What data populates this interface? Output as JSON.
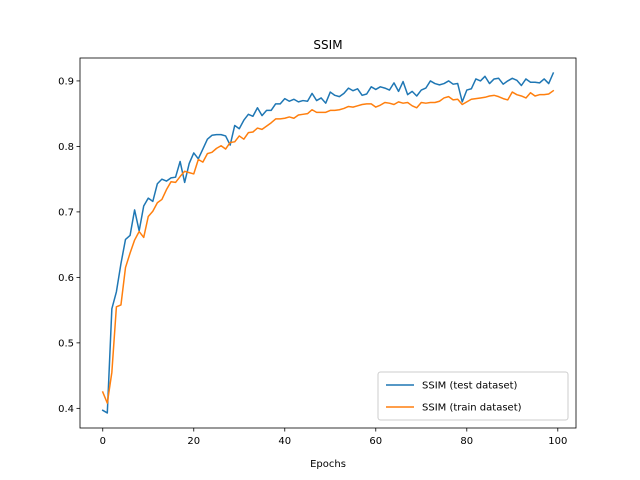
{
  "chart_data": {
    "type": "line",
    "title": "SSIM",
    "xlabel": "Epochs",
    "ylabel": "",
    "xlim": [
      -5,
      104
    ],
    "ylim": [
      0.37,
      0.935
    ],
    "x_ticks": [
      0,
      20,
      40,
      60,
      80,
      100
    ],
    "y_ticks": [
      0.4,
      0.5,
      0.6,
      0.7,
      0.8,
      0.9
    ],
    "grid": false,
    "legend_position": "lower-right",
    "series": [
      {
        "name": "SSIM (test dataset)",
        "color": "#1f77b4",
        "values": [
          0.397,
          0.393,
          0.552,
          0.578,
          0.621,
          0.658,
          0.664,
          0.703,
          0.671,
          0.709,
          0.721,
          0.716,
          0.743,
          0.75,
          0.747,
          0.752,
          0.753,
          0.777,
          0.745,
          0.774,
          0.79,
          0.781,
          0.796,
          0.811,
          0.817,
          0.818,
          0.818,
          0.816,
          0.802,
          0.832,
          0.827,
          0.84,
          0.849,
          0.846,
          0.859,
          0.847,
          0.855,
          0.855,
          0.865,
          0.865,
          0.873,
          0.869,
          0.872,
          0.868,
          0.87,
          0.869,
          0.881,
          0.87,
          0.874,
          0.866,
          0.883,
          0.878,
          0.876,
          0.881,
          0.889,
          0.885,
          0.888,
          0.878,
          0.88,
          0.891,
          0.887,
          0.891,
          0.889,
          0.886,
          0.897,
          0.884,
          0.899,
          0.879,
          0.884,
          0.877,
          0.886,
          0.889,
          0.9,
          0.896,
          0.894,
          0.896,
          0.9,
          0.895,
          0.896,
          0.868,
          0.886,
          0.888,
          0.903,
          0.9,
          0.907,
          0.896,
          0.903,
          0.904,
          0.895,
          0.9,
          0.904,
          0.901,
          0.893,
          0.903,
          0.898,
          0.898,
          0.897,
          0.903,
          0.896,
          0.912
        ]
      },
      {
        "name": "SSIM (train dataset)",
        "color": "#ff7f0e",
        "values": [
          0.425,
          0.408,
          0.455,
          0.555,
          0.558,
          0.615,
          0.637,
          0.657,
          0.67,
          0.661,
          0.693,
          0.701,
          0.714,
          0.719,
          0.734,
          0.746,
          0.745,
          0.754,
          0.762,
          0.76,
          0.758,
          0.78,
          0.776,
          0.789,
          0.791,
          0.797,
          0.801,
          0.796,
          0.806,
          0.807,
          0.816,
          0.811,
          0.821,
          0.822,
          0.828,
          0.826,
          0.831,
          0.836,
          0.842,
          0.842,
          0.843,
          0.845,
          0.843,
          0.848,
          0.849,
          0.85,
          0.856,
          0.852,
          0.852,
          0.852,
          0.855,
          0.855,
          0.856,
          0.858,
          0.861,
          0.86,
          0.862,
          0.864,
          0.865,
          0.865,
          0.86,
          0.863,
          0.867,
          0.866,
          0.864,
          0.868,
          0.866,
          0.867,
          0.862,
          0.859,
          0.867,
          0.866,
          0.867,
          0.867,
          0.869,
          0.874,
          0.876,
          0.871,
          0.872,
          0.864,
          0.868,
          0.872,
          0.873,
          0.874,
          0.875,
          0.877,
          0.878,
          0.876,
          0.873,
          0.871,
          0.883,
          0.879,
          0.877,
          0.874,
          0.882,
          0.877,
          0.879,
          0.879,
          0.88,
          0.885
        ]
      }
    ]
  }
}
